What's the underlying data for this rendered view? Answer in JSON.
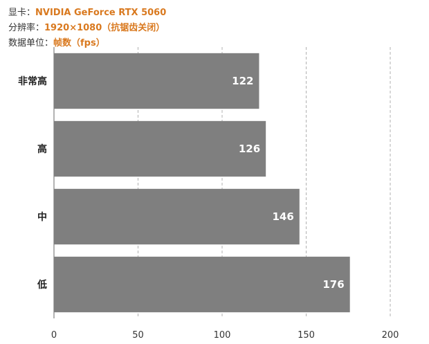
{
  "info": {
    "gpu_key": "显卡：",
    "gpu_value": "NVIDIA GeForce RTX 5060",
    "res_key": "分辨率：",
    "res_value": "1920×1080（抗锯齿关闭）",
    "unit_key": "数据单位：",
    "unit_value": "帧数（fps）"
  },
  "colors": {
    "bar": "#7f7f7f",
    "accent": "#d9791f",
    "grid": "#b0b0b0"
  },
  "chart_data": {
    "type": "bar",
    "orientation": "horizontal",
    "categories": [
      "非常高",
      "高",
      "中",
      "低"
    ],
    "values": [
      122,
      126,
      146,
      176
    ],
    "xlim": [
      0,
      200
    ],
    "xticks": [
      0,
      50,
      100,
      150,
      200
    ],
    "grid": "vertical dashed",
    "legend": "none"
  }
}
